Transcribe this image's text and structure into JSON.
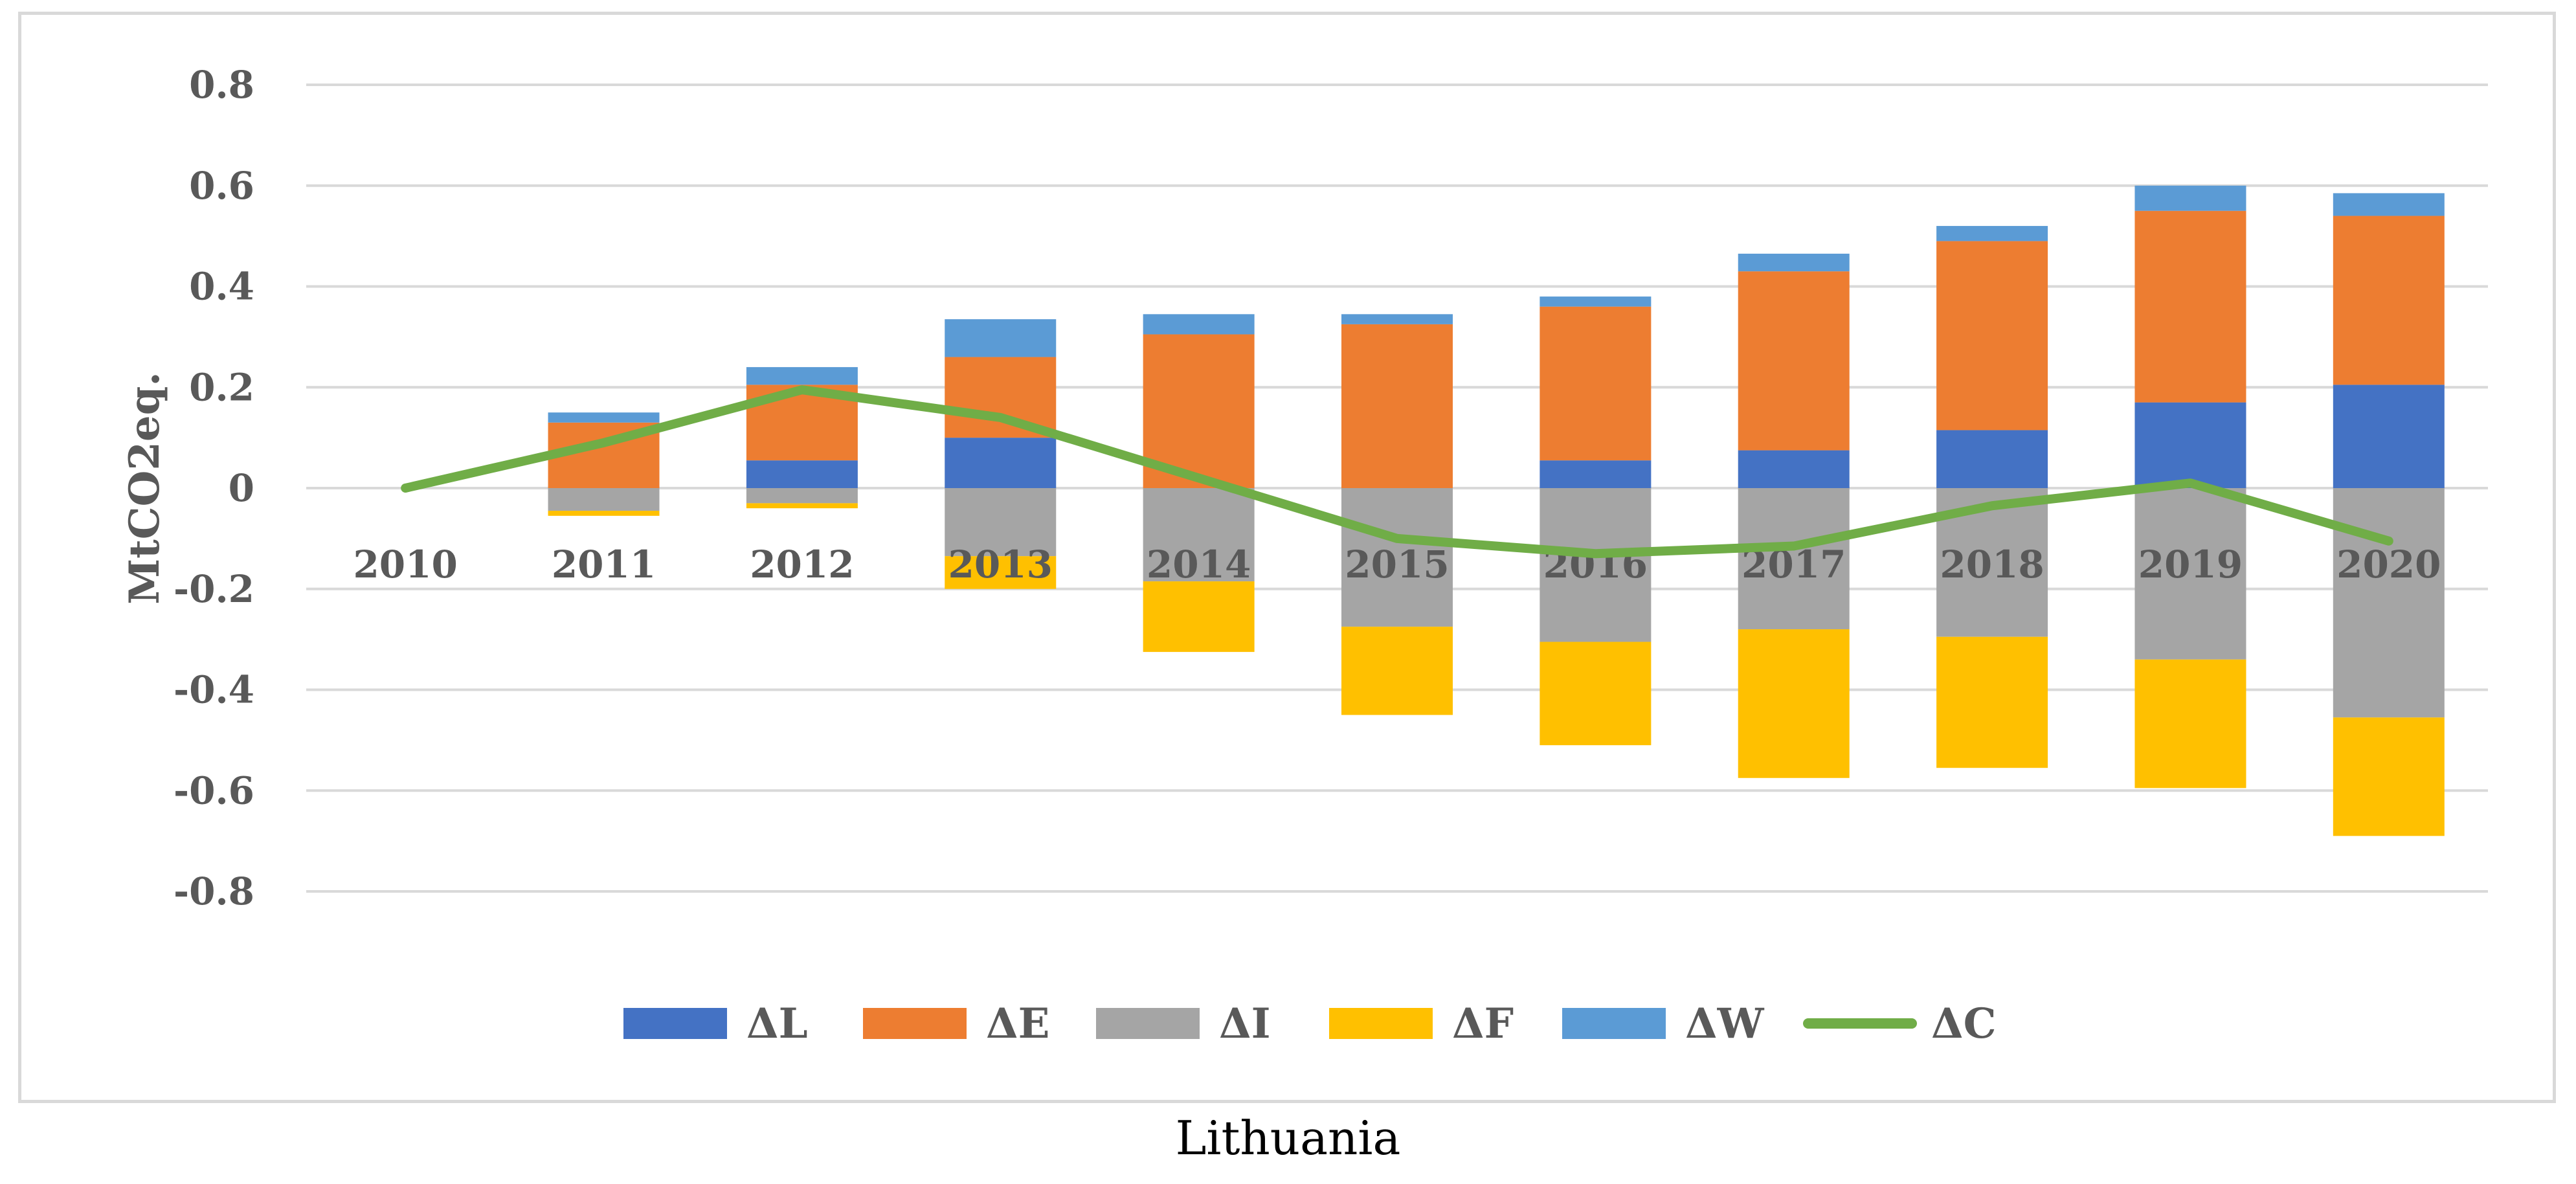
{
  "caption": "Lithuania",
  "chart_data": {
    "type": "bar",
    "stacked": true,
    "title": "",
    "xlabel": "",
    "ylabel": "MtCO2eq.",
    "ylim": [
      -0.8,
      0.8
    ],
    "yticks": [
      0.8,
      0.6,
      0.4,
      0.2,
      0,
      -0.2,
      -0.4,
      -0.6,
      -0.8
    ],
    "ytick_labels": [
      "0.8",
      "0.6",
      "0.4",
      "0.2",
      "0",
      "-0.2",
      "-0.4",
      "-0.6",
      "-0.8"
    ],
    "grid": true,
    "legend_position": "bottom",
    "categories": [
      "2010",
      "2011",
      "2012",
      "2013",
      "2014",
      "2015",
      "2016",
      "2017",
      "2018",
      "2019",
      "2020"
    ],
    "series": [
      {
        "name": "ΔL",
        "type": "bar",
        "color": "#4472C4",
        "values": [
          0,
          0,
          0.055,
          0.1,
          0,
          0,
          0.055,
          0.075,
          0.115,
          0.17,
          0.205
        ]
      },
      {
        "name": "ΔE",
        "type": "bar",
        "color": "#ED7D31",
        "values": [
          0,
          0.13,
          0.15,
          0.16,
          0.305,
          0.325,
          0.305,
          0.355,
          0.375,
          0.38,
          0.335
        ]
      },
      {
        "name": "ΔI",
        "type": "bar",
        "color": "#A5A5A5",
        "values": [
          0,
          -0.045,
          -0.03,
          -0.135,
          -0.185,
          -0.275,
          -0.305,
          -0.28,
          -0.295,
          -0.34,
          -0.455
        ]
      },
      {
        "name": "ΔF",
        "type": "bar",
        "color": "#FFC000",
        "values": [
          0,
          -0.01,
          -0.01,
          -0.065,
          -0.14,
          -0.175,
          -0.205,
          -0.295,
          -0.26,
          -0.255,
          -0.235
        ]
      },
      {
        "name": "ΔW",
        "type": "bar",
        "color": "#5B9BD5",
        "values": [
          0,
          0.02,
          0.035,
          0.075,
          0.04,
          0.02,
          0.02,
          0.035,
          0.03,
          0.05,
          0.045
        ]
      },
      {
        "name": "ΔC",
        "type": "line",
        "color": "#70AD47",
        "values": [
          0,
          0.09,
          0.195,
          0.14,
          0.02,
          -0.1,
          -0.13,
          -0.115,
          -0.035,
          0.01,
          -0.105
        ]
      }
    ]
  }
}
